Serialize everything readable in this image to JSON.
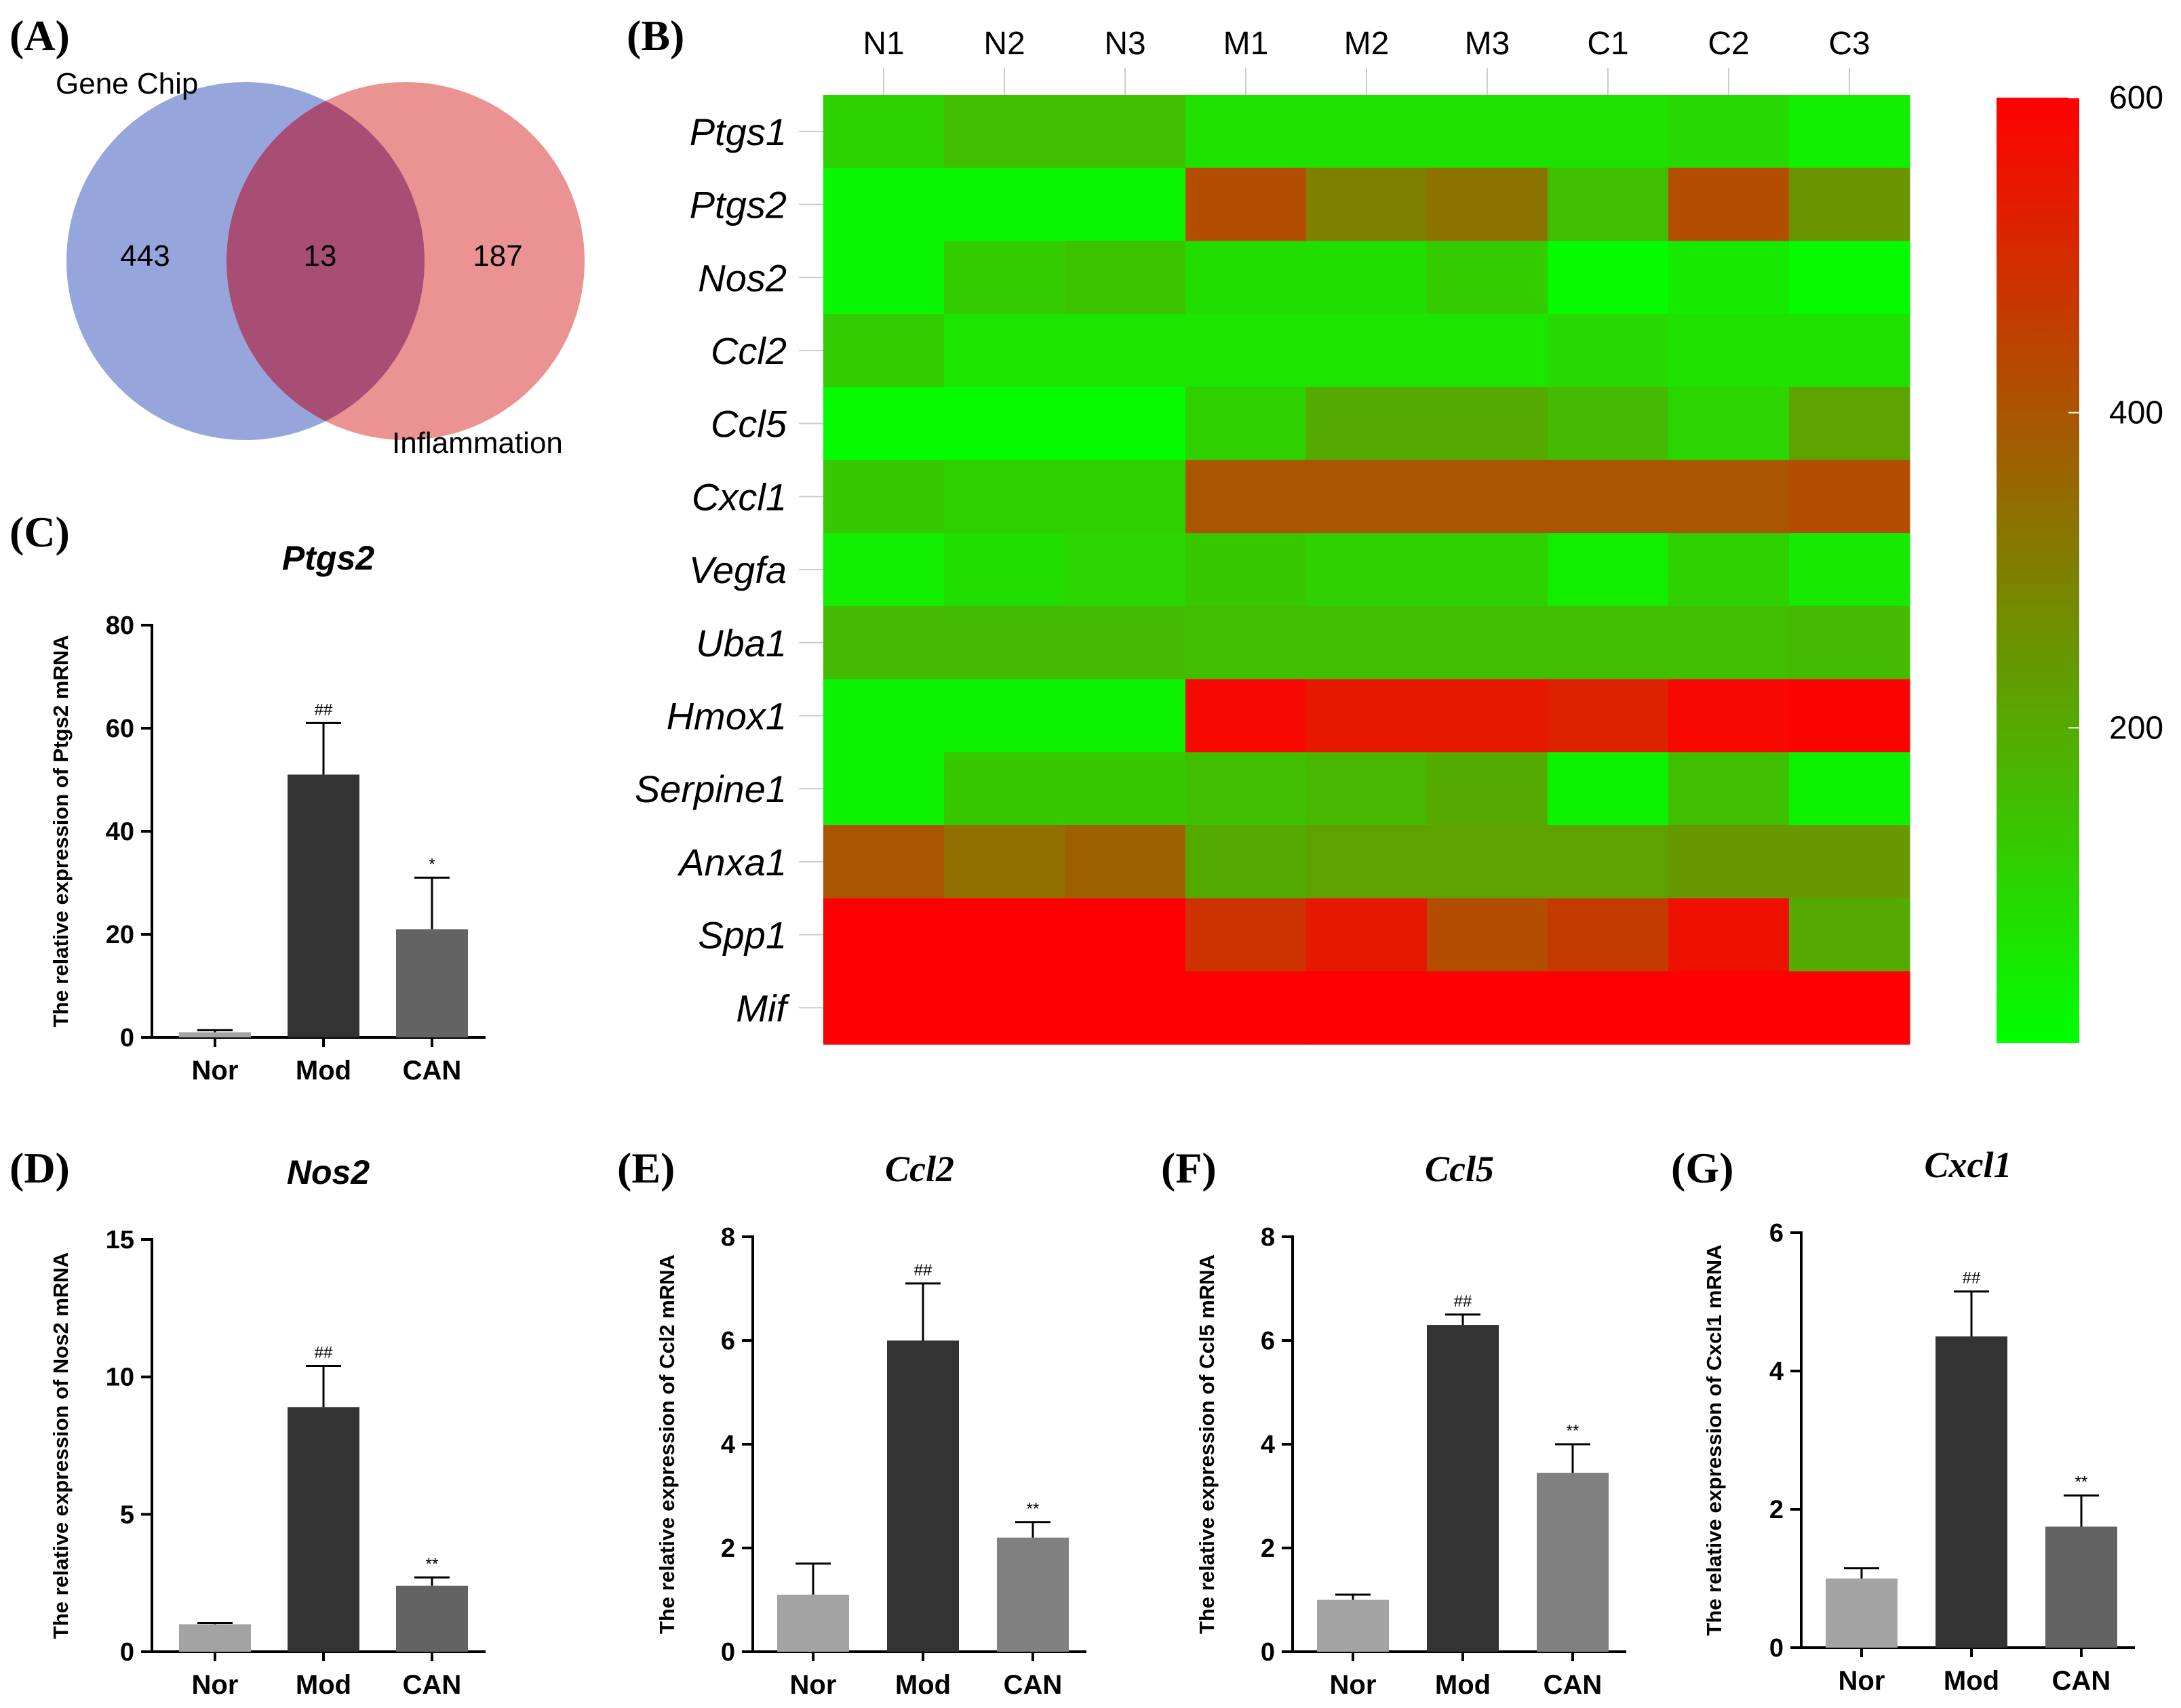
{
  "panel_labels": {
    "A": "(A)",
    "B": "(B)",
    "C": "(C)",
    "D": "(D)",
    "E": "(E)",
    "F": "(F)",
    "G": "(G)"
  },
  "venn": {
    "left_label": "Gene Chip",
    "right_label": "Inflammation",
    "left_only": "443",
    "overlap": "13",
    "right_only": "187",
    "left_color": "#8497d6",
    "right_color": "#e88080",
    "overlap_color": "#a84e74"
  },
  "chart_data": [
    {
      "type": "heatmap",
      "panel": "B",
      "columns": [
        "N1",
        "N2",
        "N3",
        "M1",
        "M2",
        "M3",
        "C1",
        "C2",
        "C3"
      ],
      "rows": [
        "Ptgs1",
        "Ptgs2",
        "Nos2",
        "Ccl2",
        "Ccl5",
        "Cxcl1",
        "Vegfa",
        "Uba1",
        "Hmox1",
        "Serpine1",
        "Anxa1",
        "Spp1",
        "Mif"
      ],
      "values": [
        [
          105,
          150,
          150,
          70,
          70,
          70,
          70,
          90,
          40
        ],
        [
          20,
          20,
          20,
          420,
          300,
          330,
          150,
          420,
          250
        ],
        [
          20,
          120,
          140,
          80,
          80,
          120,
          10,
          50,
          10
        ],
        [
          120,
          60,
          60,
          60,
          60,
          60,
          90,
          70,
          70
        ],
        [
          10,
          10,
          10,
          110,
          200,
          200,
          160,
          100,
          220
        ],
        [
          130,
          110,
          110,
          400,
          400,
          400,
          400,
          400,
          420
        ],
        [
          40,
          80,
          100,
          130,
          110,
          110,
          40,
          110,
          50
        ],
        [
          160,
          160,
          160,
          150,
          150,
          150,
          150,
          150,
          160
        ],
        [
          30,
          30,
          30,
          580,
          540,
          540,
          520,
          580,
          590
        ],
        [
          30,
          130,
          130,
          150,
          170,
          200,
          30,
          150,
          30
        ],
        [
          400,
          340,
          370,
          200,
          220,
          220,
          220,
          240,
          240
        ],
        [
          600,
          600,
          600,
          480,
          540,
          420,
          460,
          560,
          200
        ],
        [
          600,
          600,
          600,
          600,
          600,
          600,
          600,
          600,
          600
        ]
      ],
      "colorbar": {
        "min": 0,
        "max": 600,
        "ticks": [
          200,
          400,
          600
        ],
        "colors": [
          "#00ff00",
          "#ff0000"
        ]
      }
    },
    {
      "type": "bar",
      "panel": "C",
      "title": "Ptgs2",
      "title_style": "sans",
      "ylabel": "The relative expression of Ptgs2 mRNA",
      "categories": [
        "Nor",
        "Mod",
        "CAN"
      ],
      "values": [
        1,
        51,
        21
      ],
      "errors": [
        0.4,
        10,
        10
      ],
      "significance": [
        "",
        "##",
        "*"
      ],
      "ylim": [
        0,
        80
      ],
      "yticks": [
        0,
        20,
        40,
        60,
        80
      ],
      "colors": [
        "#a3a3a3",
        "#333333",
        "#636363"
      ]
    },
    {
      "type": "bar",
      "panel": "D",
      "title": "Nos2",
      "title_style": "sans",
      "ylabel": "The relative expression of Nos2 mRNA",
      "categories": [
        "Nor",
        "Mod",
        "CAN"
      ],
      "values": [
        1,
        8.9,
        2.4
      ],
      "errors": [
        0.05,
        1.5,
        0.3
      ],
      "significance": [
        "",
        "##",
        "**"
      ],
      "ylim": [
        0,
        15
      ],
      "yticks": [
        0,
        5,
        10,
        15
      ],
      "colors": [
        "#a3a3a3",
        "#333333",
        "#636363"
      ]
    },
    {
      "type": "bar",
      "panel": "E",
      "title": "Ccl2",
      "title_style": "serif",
      "ylabel": "The relative expression of Ccl2 mRNA",
      "categories": [
        "Nor",
        "Mod",
        "CAN"
      ],
      "values": [
        1.1,
        6.0,
        2.2
      ],
      "errors": [
        0.6,
        1.1,
        0.3
      ],
      "significance": [
        "",
        "##",
        "**"
      ],
      "ylim": [
        0,
        8
      ],
      "yticks": [
        0,
        2,
        4,
        6,
        8
      ],
      "colors": [
        "#a3a3a3",
        "#333333",
        "#808080"
      ]
    },
    {
      "type": "bar",
      "panel": "F",
      "title": "Ccl5",
      "title_style": "serif",
      "ylabel": "The relative expression of Ccl5 mRNA",
      "categories": [
        "Nor",
        "Mod",
        "CAN"
      ],
      "values": [
        1.0,
        6.3,
        3.45
      ],
      "errors": [
        0.1,
        0.2,
        0.55
      ],
      "significance": [
        "",
        "##",
        "**"
      ],
      "ylim": [
        0,
        8
      ],
      "yticks": [
        0,
        2,
        4,
        6,
        8
      ],
      "colors": [
        "#a3a3a3",
        "#333333",
        "#808080"
      ]
    },
    {
      "type": "bar",
      "panel": "G",
      "title": "Cxcl1",
      "title_style": "serif",
      "ylabel": "The relative expression of Cxcl1 mRNA",
      "categories": [
        "Nor",
        "Mod",
        "CAN"
      ],
      "values": [
        1.0,
        4.5,
        1.75
      ],
      "errors": [
        0.15,
        0.65,
        0.45
      ],
      "significance": [
        "",
        "##",
        "**"
      ],
      "ylim": [
        0,
        6
      ],
      "yticks": [
        0,
        2,
        4,
        6
      ],
      "colors": [
        "#a3a3a3",
        "#333333",
        "#636363"
      ]
    }
  ]
}
